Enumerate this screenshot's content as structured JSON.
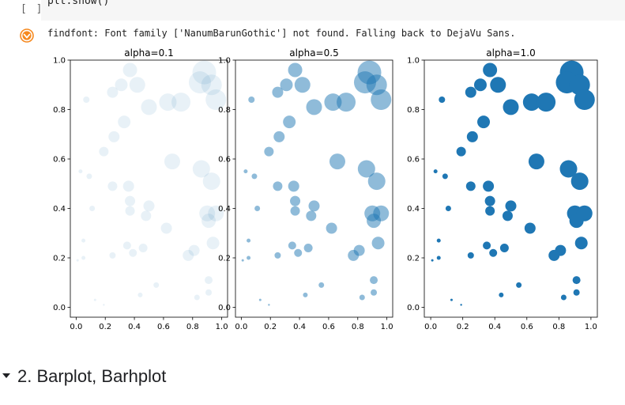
{
  "cell": {
    "prompt": "[ ]",
    "code": "plt.show()"
  },
  "output": {
    "warning_icon": "warning-icon",
    "warning_text": "findfont: Font family ['NanumBarunGothic'] not found. Falling back to DejaVu Sans."
  },
  "section": {
    "title": "2. Barplot, Barhplot"
  },
  "colors": {
    "marker": "#1f77b4",
    "warning": "#f6891f"
  },
  "chart_data": [
    {
      "type": "scatter",
      "title": "alpha=0.1",
      "alpha": 0.1,
      "xlim": [
        -0.04,
        1.04
      ],
      "ylim": [
        -0.04,
        1.0
      ],
      "xticks": [
        "0.0",
        "0.2",
        "0.4",
        "0.6",
        "0.8",
        "1.0"
      ],
      "yticks": [
        "0.0",
        "0.2",
        "0.4",
        "0.6",
        "0.8",
        "1.0"
      ]
    },
    {
      "type": "scatter",
      "title": "alpha=0.5",
      "alpha": 0.5,
      "xlim": [
        -0.04,
        1.04
      ],
      "ylim": [
        -0.04,
        1.0
      ],
      "xticks": [
        "0.0",
        "0.2",
        "0.4",
        "0.6",
        "0.8",
        "1.0"
      ],
      "yticks": [
        "0.0",
        "0.2",
        "0.4",
        "0.6",
        "0.8",
        "1.0"
      ]
    },
    {
      "type": "scatter",
      "title": "alpha=1.0",
      "alpha": 1.0,
      "xlim": [
        -0.04,
        1.04
      ],
      "ylim": [
        -0.04,
        1.0
      ],
      "xticks": [
        "0.0",
        "0.2",
        "0.4",
        "0.6",
        "0.8",
        "1.0"
      ],
      "yticks": [
        "0.0",
        "0.2",
        "0.4",
        "0.6",
        "0.8",
        "1.0"
      ]
    }
  ],
  "points": [
    {
      "x": 0.88,
      "y": 0.95,
      "s": 15
    },
    {
      "x": 0.85,
      "y": 0.91,
      "s": 14
    },
    {
      "x": 0.93,
      "y": 0.9,
      "s": 13
    },
    {
      "x": 0.96,
      "y": 0.84,
      "s": 13
    },
    {
      "x": 0.37,
      "y": 0.96,
      "s": 9
    },
    {
      "x": 0.31,
      "y": 0.9,
      "s": 8
    },
    {
      "x": 0.42,
      "y": 0.9,
      "s": 10
    },
    {
      "x": 0.25,
      "y": 0.87,
      "s": 7
    },
    {
      "x": 0.07,
      "y": 0.84,
      "s": 4
    },
    {
      "x": 0.5,
      "y": 0.81,
      "s": 10
    },
    {
      "x": 0.63,
      "y": 0.83,
      "s": 11
    },
    {
      "x": 0.72,
      "y": 0.83,
      "s": 12
    },
    {
      "x": 0.33,
      "y": 0.75,
      "s": 8
    },
    {
      "x": 0.26,
      "y": 0.69,
      "s": 7
    },
    {
      "x": 0.19,
      "y": 0.63,
      "s": 6
    },
    {
      "x": 0.66,
      "y": 0.59,
      "s": 10
    },
    {
      "x": 0.03,
      "y": 0.55,
      "s": 2.5
    },
    {
      "x": 0.09,
      "y": 0.53,
      "s": 3.5
    },
    {
      "x": 0.86,
      "y": 0.56,
      "s": 11
    },
    {
      "x": 0.93,
      "y": 0.51,
      "s": 11
    },
    {
      "x": 0.25,
      "y": 0.49,
      "s": 6
    },
    {
      "x": 0.36,
      "y": 0.49,
      "s": 7
    },
    {
      "x": 0.37,
      "y": 0.43,
      "s": 6.5
    },
    {
      "x": 0.37,
      "y": 0.39,
      "s": 6
    },
    {
      "x": 0.11,
      "y": 0.4,
      "s": 3.5
    },
    {
      "x": 0.5,
      "y": 0.41,
      "s": 7
    },
    {
      "x": 0.48,
      "y": 0.37,
      "s": 6.5
    },
    {
      "x": 0.9,
      "y": 0.38,
      "s": 10
    },
    {
      "x": 0.96,
      "y": 0.38,
      "s": 10
    },
    {
      "x": 0.91,
      "y": 0.35,
      "s": 9
    },
    {
      "x": 0.62,
      "y": 0.32,
      "s": 7
    },
    {
      "x": 0.05,
      "y": 0.27,
      "s": 2.5
    },
    {
      "x": 0.35,
      "y": 0.25,
      "s": 5
    },
    {
      "x": 0.46,
      "y": 0.24,
      "s": 5.5
    },
    {
      "x": 0.94,
      "y": 0.26,
      "s": 8
    },
    {
      "x": 0.39,
      "y": 0.22,
      "s": 5
    },
    {
      "x": 0.25,
      "y": 0.21,
      "s": 4
    },
    {
      "x": 0.81,
      "y": 0.23,
      "s": 7
    },
    {
      "x": 0.77,
      "y": 0.21,
      "s": 7
    },
    {
      "x": 0.05,
      "y": 0.2,
      "s": 2.5
    },
    {
      "x": 0.01,
      "y": 0.19,
      "s": 1.5
    },
    {
      "x": 0.91,
      "y": 0.11,
      "s": 5
    },
    {
      "x": 0.55,
      "y": 0.09,
      "s": 3.5
    },
    {
      "x": 0.91,
      "y": 0.06,
      "s": 4
    },
    {
      "x": 0.44,
      "y": 0.05,
      "s": 3
    },
    {
      "x": 0.83,
      "y": 0.04,
      "s": 3.5
    },
    {
      "x": 0.13,
      "y": 0.03,
      "s": 1.5
    },
    {
      "x": 0.19,
      "y": 0.01,
      "s": 1.2
    }
  ]
}
